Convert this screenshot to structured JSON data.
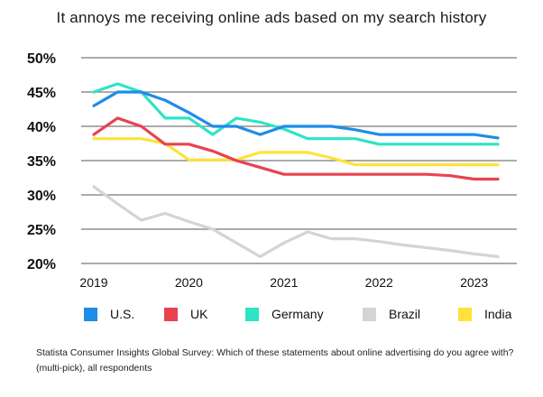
{
  "chart_data": {
    "type": "line",
    "title": "It annoys me receiving online ads based on my search history",
    "xlabel": "",
    "ylabel": "",
    "x": [
      2019.0,
      2019.25,
      2019.5,
      2019.75,
      2020.0,
      2020.25,
      2020.5,
      2020.75,
      2021.0,
      2021.25,
      2021.5,
      2021.75,
      2022.0,
      2022.25,
      2022.5,
      2022.75,
      2023.0,
      2023.25
    ],
    "x_tick_labels": [
      "2019",
      "2020",
      "2021",
      "2022",
      "2023"
    ],
    "y_tick_labels": [
      "50%",
      "45%",
      "40%",
      "35%",
      "30%",
      "25%",
      "20%"
    ],
    "ylim": [
      20,
      50
    ],
    "series": [
      {
        "name": "U.S.",
        "color": "#1f8ce8",
        "values": [
          43,
          45,
          45,
          43.8,
          42,
          40,
          40,
          38.8,
          40,
          40,
          40,
          39.5,
          38.8,
          38.8,
          38.8,
          38.8,
          38.8,
          38.3
        ]
      },
      {
        "name": "UK",
        "color": "#e8434f",
        "values": [
          38.8,
          41.2,
          40,
          37.4,
          37.4,
          36.4,
          35,
          34,
          33,
          33,
          33,
          33,
          33,
          33,
          33,
          32.8,
          32.3,
          32.3
        ]
      },
      {
        "name": "Germany",
        "color": "#2ee4c4",
        "values": [
          45,
          46.2,
          45,
          41.2,
          41.2,
          38.8,
          41.2,
          40.6,
          39.6,
          38.2,
          38.2,
          38.2,
          37.4,
          37.4,
          37.4,
          37.4,
          37.4,
          37.4
        ]
      },
      {
        "name": "Brazil",
        "color": "#d4d4d4",
        "values": [
          31.2,
          28.7,
          26.3,
          27.3,
          26.1,
          25,
          23,
          21,
          23,
          24.6,
          23.6,
          23.6,
          23.2,
          22.7,
          22.3,
          21.9,
          21.4,
          21
        ]
      },
      {
        "name": "India",
        "color": "#ffe23a",
        "values": [
          38.2,
          38.2,
          38.2,
          37.5,
          35.1,
          35.1,
          35.1,
          36.2,
          36.2,
          36.2,
          35.4,
          34.4,
          34.4,
          34.4,
          34.4,
          34.4,
          34.4,
          34.4
        ]
      }
    ],
    "legend_position": "bottom",
    "grid": true
  },
  "footnote": "Statista Consumer Insights Global Survey: Which of these statements about online advertising do you agree with? (multi-pick), all respondents"
}
